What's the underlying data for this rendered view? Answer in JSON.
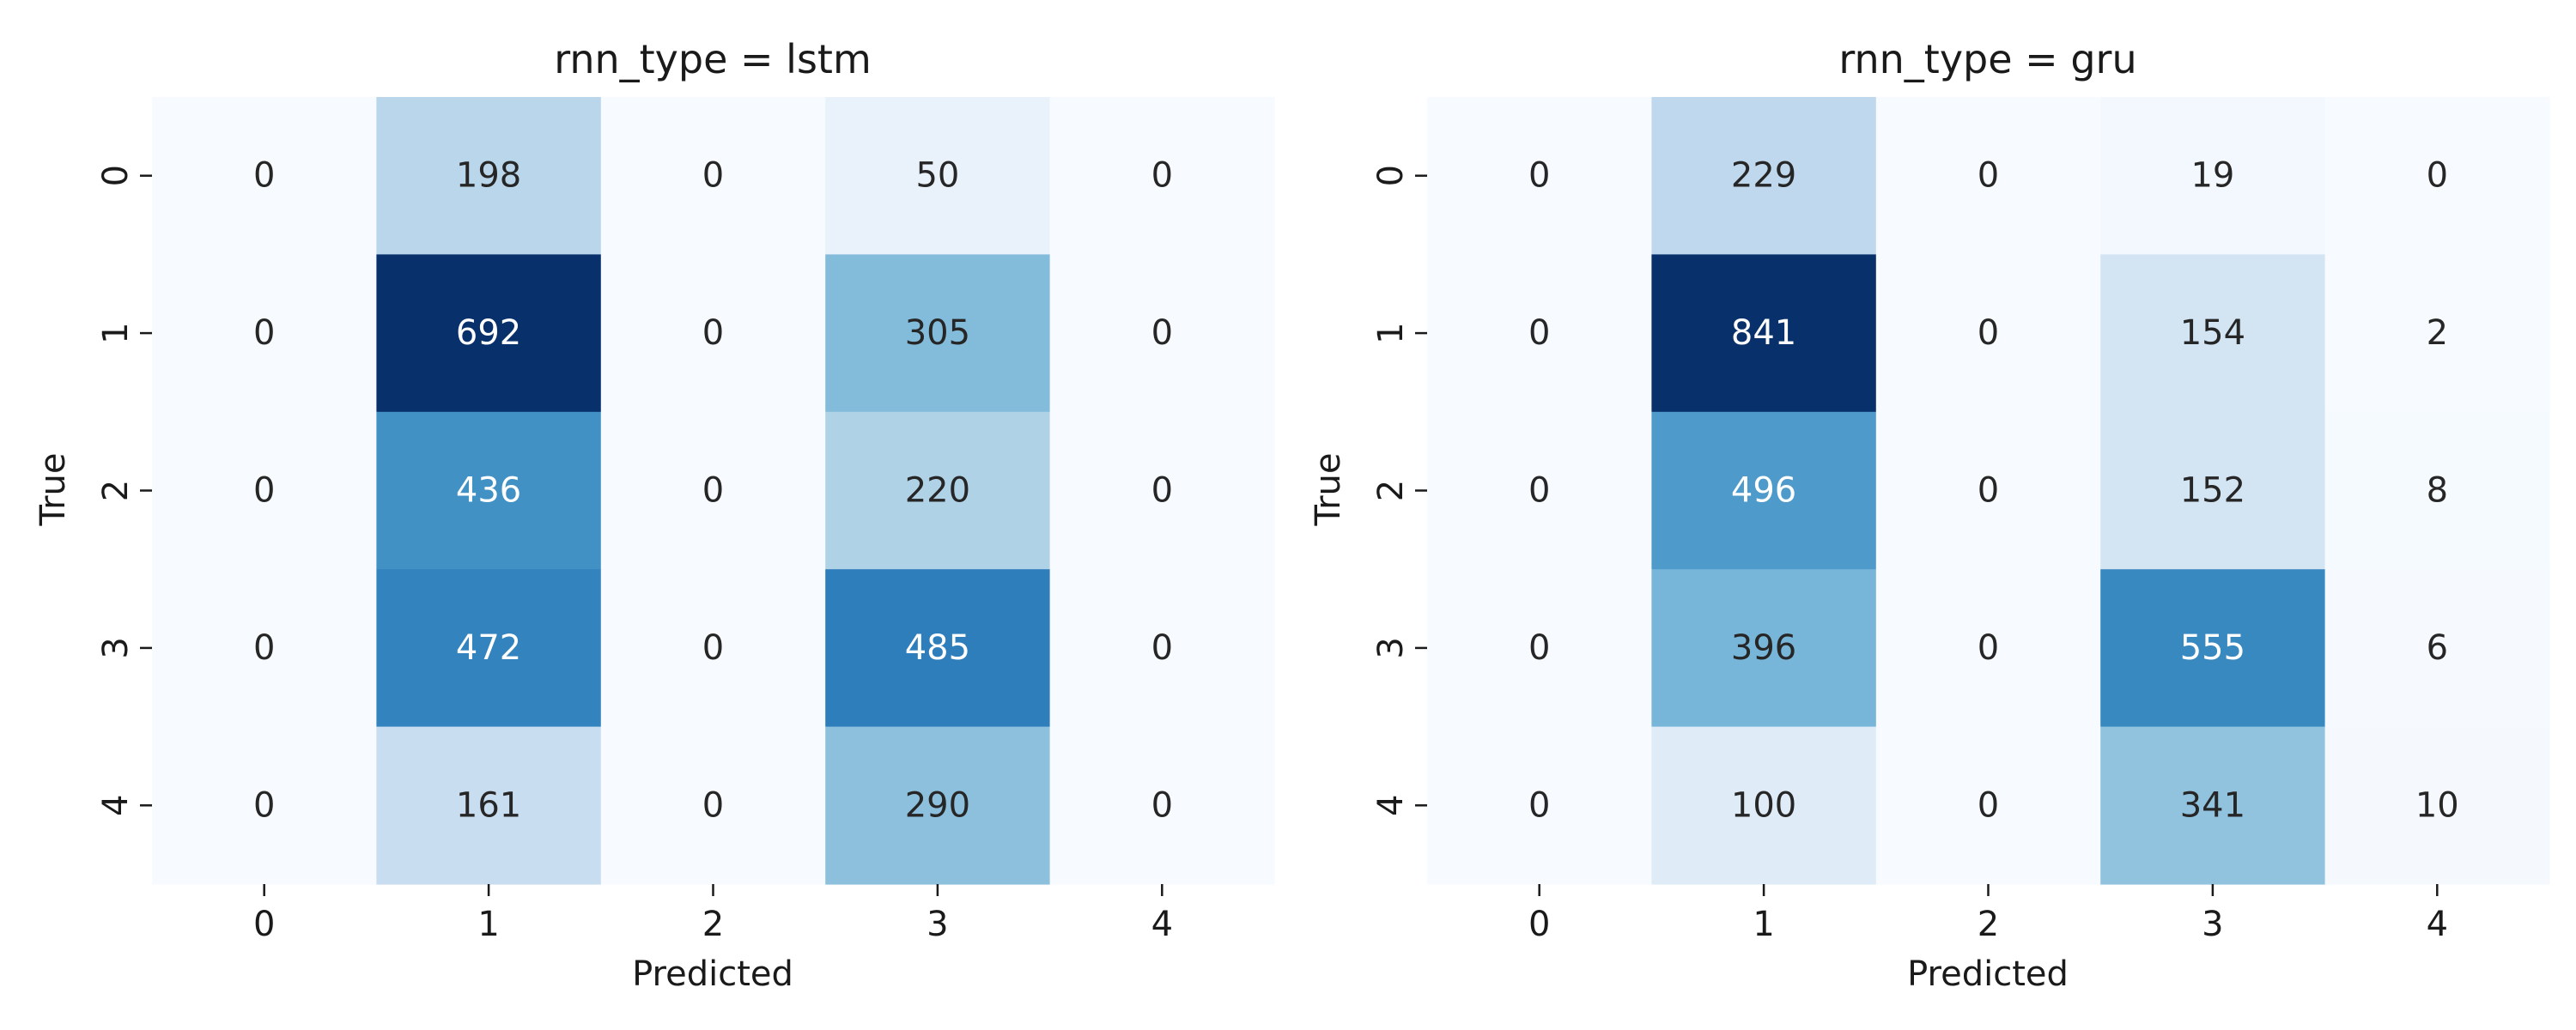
{
  "chart_data": [
    {
      "type": "heatmap",
      "title": "rnn_type = lstm",
      "xlabel": "Predicted",
      "ylabel": "True",
      "x_categories": [
        "0",
        "1",
        "2",
        "3",
        "4"
      ],
      "y_categories": [
        "0",
        "1",
        "2",
        "3",
        "4"
      ],
      "values": [
        [
          0,
          198,
          0,
          50,
          0
        ],
        [
          0,
          692,
          0,
          305,
          0
        ],
        [
          0,
          436,
          0,
          220,
          0
        ],
        [
          0,
          472,
          0,
          485,
          0
        ],
        [
          0,
          161,
          0,
          290,
          0
        ]
      ],
      "colormap": "Blues",
      "colorbar": false,
      "grid": false
    },
    {
      "type": "heatmap",
      "title": "rnn_type = gru",
      "xlabel": "Predicted",
      "ylabel": "True",
      "x_categories": [
        "0",
        "1",
        "2",
        "3",
        "4"
      ],
      "y_categories": [
        "0",
        "1",
        "2",
        "3",
        "4"
      ],
      "values": [
        [
          0,
          229,
          0,
          19,
          0
        ],
        [
          0,
          841,
          0,
          154,
          2
        ],
        [
          0,
          496,
          0,
          152,
          8
        ],
        [
          0,
          396,
          0,
          555,
          6
        ],
        [
          0,
          100,
          0,
          341,
          10
        ]
      ],
      "colormap": "Blues",
      "colorbar": false,
      "grid": false
    }
  ]
}
